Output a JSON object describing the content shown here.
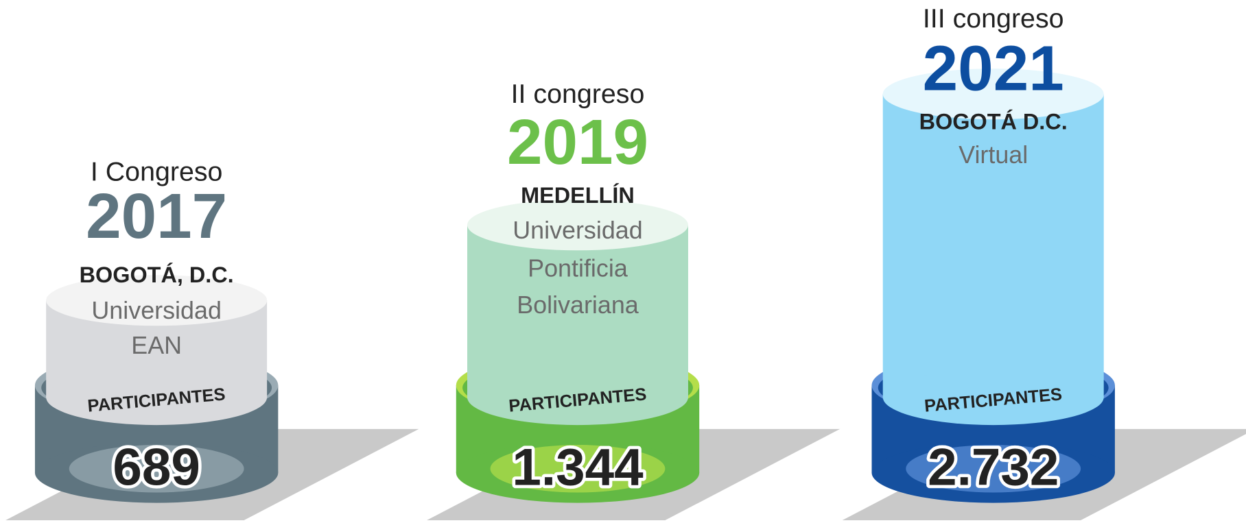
{
  "congresses": [
    {
      "name": "I Congreso",
      "year": "2017",
      "city": "BOGOTÁ, D.C.",
      "venue": [
        "Universidad",
        "EAN"
      ],
      "label": "PARTICIPANTES",
      "participants": "689"
    },
    {
      "name": "II congreso",
      "year": "2019",
      "city": "MEDELLÍN",
      "venue": [
        "Universidad",
        "Pontificia",
        "Bolivariana"
      ],
      "label": "PARTICIPANTES",
      "participants": "1.344"
    },
    {
      "name": "III congreso",
      "year": "2021",
      "city": "BOGOTÁ D.C.",
      "venue": [
        "Virtual"
      ],
      "label": "PARTICIPANTES",
      "participants": "2.732"
    }
  ]
}
